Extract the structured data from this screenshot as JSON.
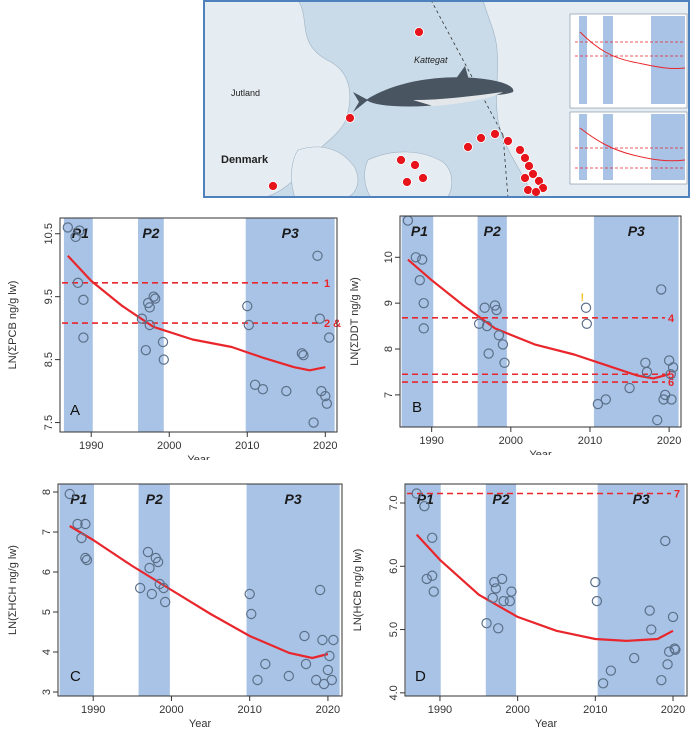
{
  "map": {
    "labels": {
      "kattegat": "Kattegat",
      "jutland": "Jutland",
      "denmark": "Denmark"
    },
    "colors": {
      "sea": "#c9dbe9",
      "land": "#e5ecf2",
      "site": "#e8141b",
      "frame": "#4f81bd"
    }
  },
  "colors": {
    "period_band": "#a9c3e6",
    "trend": "#e8262c",
    "reference": "#e8262c",
    "points": "#5b7089",
    "marker_yellow": "#f0c020"
  },
  "chart_data": [
    {
      "id": "A",
      "type": "scatter",
      "panel_label": "A",
      "ylabel": "LN(ΣPCB ng/g lw)",
      "xlabel": "Year",
      "xlim": [
        1986,
        2021.5
      ],
      "ylim": [
        7.35,
        10.75
      ],
      "xticks": [
        "1990",
        "2000",
        "2010",
        "2020"
      ],
      "yticks": [
        "7.5",
        "8.5",
        "9.5",
        "10.5"
      ],
      "periods": [
        {
          "label": "P1",
          "from": 1986.5,
          "to": 1990.2
        },
        {
          "label": "P2",
          "from": 1996,
          "to": 1999.3
        },
        {
          "label": "P3",
          "from": 2009.8,
          "to": 2021.2
        }
      ],
      "reference_lines": [
        {
          "y": 9.72,
          "label": "1"
        },
        {
          "y": 9.08,
          "label": "2 & 3"
        }
      ],
      "trend": [
        [
          1987,
          10.15
        ],
        [
          1990,
          9.75
        ],
        [
          1994,
          9.35
        ],
        [
          1998,
          9.02
        ],
        [
          2003,
          8.82
        ],
        [
          2008,
          8.7
        ],
        [
          2012,
          8.53
        ],
        [
          2016,
          8.38
        ],
        [
          2018,
          8.33
        ],
        [
          2020,
          8.38
        ]
      ],
      "points": [
        [
          1987,
          10.6
        ],
        [
          1988,
          10.45
        ],
        [
          1988.5,
          10.55
        ],
        [
          1988.3,
          9.72
        ],
        [
          1989,
          9.45
        ],
        [
          1989,
          8.85
        ],
        [
          1996.5,
          9.15
        ],
        [
          1997.3,
          9.4
        ],
        [
          1997.5,
          9.33
        ],
        [
          1998,
          9.5
        ],
        [
          1998.2,
          9.47
        ],
        [
          1997.5,
          9.05
        ],
        [
          1997,
          8.65
        ],
        [
          1999.2,
          8.78
        ],
        [
          1999.3,
          8.5
        ],
        [
          2010,
          9.35
        ],
        [
          2010.2,
          9.05
        ],
        [
          2011,
          8.1
        ],
        [
          2012,
          8.03
        ],
        [
          2015,
          8.0
        ],
        [
          2017,
          8.6
        ],
        [
          2017.2,
          8.57
        ],
        [
          2018.5,
          7.5
        ],
        [
          2019,
          10.15
        ],
        [
          2019.3,
          9.15
        ],
        [
          2019.5,
          8.0
        ],
        [
          2020,
          7.92
        ],
        [
          2020.2,
          7.8
        ],
        [
          2020.5,
          8.85
        ]
      ]
    },
    {
      "id": "B",
      "type": "scatter",
      "panel_label": "B",
      "ylabel": "LN(ΣDDT ng/g lw)",
      "xlabel": "Year",
      "xlim": [
        1986,
        2021.5
      ],
      "ylim": [
        6.3,
        10.9
      ],
      "xticks": [
        "1990",
        "2000",
        "2010",
        "2020"
      ],
      "yticks": [
        "7",
        "8",
        "9",
        "10"
      ],
      "periods": [
        {
          "label": "P1",
          "from": 1986.2,
          "to": 1990.2
        },
        {
          "label": "P2",
          "from": 1995.8,
          "to": 1999.5
        },
        {
          "label": "P3",
          "from": 2010.5,
          "to": 2021.2
        }
      ],
      "reference_lines": [
        {
          "y": 8.68,
          "label": "4"
        },
        {
          "y": 7.45,
          "label": "5"
        },
        {
          "y": 7.28,
          "label": "6"
        }
      ],
      "trend": [
        [
          1987,
          9.95
        ],
        [
          1990,
          9.5
        ],
        [
          1994,
          8.95
        ],
        [
          1998,
          8.45
        ],
        [
          2003,
          8.1
        ],
        [
          2008,
          7.88
        ],
        [
          2012,
          7.65
        ],
        [
          2016,
          7.42
        ],
        [
          2018,
          7.36
        ],
        [
          2020,
          7.45
        ]
      ],
      "points": [
        [
          1987,
          10.8
        ],
        [
          1988,
          10.0
        ],
        [
          1988.5,
          9.5
        ],
        [
          1988.8,
          9.95
        ],
        [
          1989,
          9.0
        ],
        [
          1989,
          8.45
        ],
        [
          1996,
          8.55
        ],
        [
          1996.7,
          8.9
        ],
        [
          1997,
          8.5
        ],
        [
          1997.2,
          7.9
        ],
        [
          1998,
          8.95
        ],
        [
          1998.2,
          8.85
        ],
        [
          1998.5,
          8.3
        ],
        [
          1999,
          8.1
        ],
        [
          1999.2,
          7.7
        ],
        [
          2009.5,
          8.9
        ],
        [
          2009.6,
          8.55
        ],
        [
          2011,
          6.8
        ],
        [
          2012,
          6.9
        ],
        [
          2015,
          7.15
        ],
        [
          2017,
          7.7
        ],
        [
          2017.2,
          7.5
        ],
        [
          2018.5,
          6.45
        ],
        [
          2019,
          9.3
        ],
        [
          2019.3,
          6.9
        ],
        [
          2019.5,
          7.0
        ],
        [
          2020,
          7.75
        ],
        [
          2020.2,
          7.45
        ],
        [
          2020.3,
          6.9
        ],
        [
          2020.5,
          7.6
        ]
      ],
      "marker": {
        "x": 2008.8,
        "y": 9.05,
        "label": "!"
      }
    },
    {
      "id": "C",
      "type": "scatter",
      "panel_label": "C",
      "ylabel": "LN(ΣHCH ng/g lw)",
      "xlabel": "Year",
      "xlim": [
        1985.5,
        2021.8
      ],
      "ylim": [
        2.9,
        8.2
      ],
      "xticks": [
        "1990",
        "2000",
        "2010",
        "2020"
      ],
      "yticks": [
        "3",
        "4",
        "5",
        "6",
        "7",
        "8"
      ],
      "periods": [
        {
          "label": "P1",
          "from": 1985.7,
          "to": 1990.1
        },
        {
          "label": "P2",
          "from": 1995.8,
          "to": 1999.8
        },
        {
          "label": "P3",
          "from": 2009.6,
          "to": 2021.5
        }
      ],
      "reference_lines": [],
      "trend": [
        [
          1987,
          7.15
        ],
        [
          1990,
          6.8
        ],
        [
          1995,
          6.15
        ],
        [
          2000,
          5.55
        ],
        [
          2005,
          4.95
        ],
        [
          2010,
          4.4
        ],
        [
          2015,
          3.98
        ],
        [
          2018,
          3.85
        ],
        [
          2020,
          3.95
        ]
      ],
      "points": [
        [
          1987,
          7.95
        ],
        [
          1988,
          7.2
        ],
        [
          1988.5,
          6.85
        ],
        [
          1989,
          7.2
        ],
        [
          1989,
          6.35
        ],
        [
          1989.2,
          6.3
        ],
        [
          1996,
          5.6
        ],
        [
          1997,
          6.5
        ],
        [
          1997.2,
          6.1
        ],
        [
          1997.5,
          5.45
        ],
        [
          1998,
          6.35
        ],
        [
          1998.3,
          6.25
        ],
        [
          1998.5,
          5.7
        ],
        [
          1999,
          5.6
        ],
        [
          1999.2,
          5.25
        ],
        [
          2010,
          5.45
        ],
        [
          2010.2,
          4.95
        ],
        [
          2011,
          3.3
        ],
        [
          2012,
          3.7
        ],
        [
          2015,
          3.4
        ],
        [
          2017,
          4.4
        ],
        [
          2017.2,
          3.7
        ],
        [
          2018.5,
          3.3
        ],
        [
          2019,
          5.55
        ],
        [
          2019.3,
          4.3
        ],
        [
          2019.5,
          3.2
        ],
        [
          2020,
          3.55
        ],
        [
          2020.2,
          3.9
        ],
        [
          2020.5,
          3.3
        ],
        [
          2020.7,
          4.3
        ]
      ]
    },
    {
      "id": "D",
      "type": "scatter",
      "panel_label": "D",
      "ylabel": "LN(HCB ng/g lw)",
      "xlabel": "Year",
      "xlim": [
        1985.5,
        2021.8
      ],
      "ylim": [
        3.95,
        7.3
      ],
      "xticks": [
        "1990",
        "2000",
        "2010",
        "2020"
      ],
      "yticks": [
        "4.0",
        "5.0",
        "6.0",
        "7.0"
      ],
      "periods": [
        {
          "label": "P1",
          "from": 1985.6,
          "to": 1990.1
        },
        {
          "label": "P2",
          "from": 1995.9,
          "to": 1999.8
        },
        {
          "label": "P3",
          "from": 2010.3,
          "to": 2021.5
        }
      ],
      "reference_lines": [
        {
          "y": 7.15,
          "label": "7"
        }
      ],
      "trend": [
        [
          1987,
          6.5
        ],
        [
          1990,
          6.1
        ],
        [
          1995,
          5.55
        ],
        [
          2000,
          5.2
        ],
        [
          2005,
          4.98
        ],
        [
          2010,
          4.85
        ],
        [
          2014,
          4.82
        ],
        [
          2018,
          4.85
        ],
        [
          2020,
          4.98
        ]
      ],
      "points": [
        [
          1987,
          7.15
        ],
        [
          1988,
          6.95
        ],
        [
          1988.3,
          5.8
        ],
        [
          1989,
          6.45
        ],
        [
          1989,
          5.85
        ],
        [
          1989.2,
          5.6
        ],
        [
          1996,
          5.1
        ],
        [
          1996.8,
          5.5
        ],
        [
          1997,
          5.75
        ],
        [
          1997.2,
          5.65
        ],
        [
          1997.5,
          5.02
        ],
        [
          1998,
          5.8
        ],
        [
          1998.2,
          5.45
        ],
        [
          1999,
          5.45
        ],
        [
          1999.2,
          5.6
        ],
        [
          2010,
          5.75
        ],
        [
          2010.2,
          5.45
        ],
        [
          2011,
          4.15
        ],
        [
          2012,
          4.35
        ],
        [
          2015,
          4.55
        ],
        [
          2017,
          5.3
        ],
        [
          2017.2,
          5.0
        ],
        [
          2018.5,
          4.2
        ],
        [
          2019,
          6.4
        ],
        [
          2019.3,
          4.45
        ],
        [
          2019.5,
          4.65
        ],
        [
          2020,
          5.2
        ],
        [
          2020.2,
          4.7
        ],
        [
          2020.3,
          4.68
        ]
      ]
    }
  ]
}
